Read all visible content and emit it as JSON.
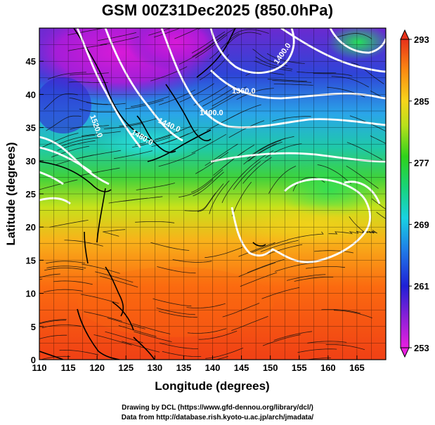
{
  "title": "GSM 00Z31Dec2025 (850.0hPa)",
  "x_axis": {
    "label": "Longitude (degrees)",
    "range": [
      110,
      170
    ],
    "ticks": [
      "110",
      "115",
      "120",
      "125",
      "130",
      "135",
      "140",
      "145",
      "150",
      "155",
      "160",
      "165"
    ]
  },
  "y_axis": {
    "label": "Latitude  (degrees)",
    "range": [
      0,
      50
    ],
    "ticks": [
      "0",
      "5",
      "10",
      "15",
      "20",
      "25",
      "30",
      "35",
      "40",
      "45"
    ]
  },
  "colorbar": {
    "min": 253,
    "max": 293,
    "ticks": [
      "253",
      "261",
      "269",
      "277",
      "285",
      "293"
    ]
  },
  "contour_labels": [
    "1520.0",
    "1480.0",
    "1440.0",
    "1400.0",
    "1360.0",
    "1400.0"
  ],
  "credits": {
    "line1": "Drawing by DCL (https://www.gfd-dennou.org/library/dcl/)",
    "line2": "Data from http://database.rish.kyoto-u.ac.jp/arch/jmadata/"
  }
}
